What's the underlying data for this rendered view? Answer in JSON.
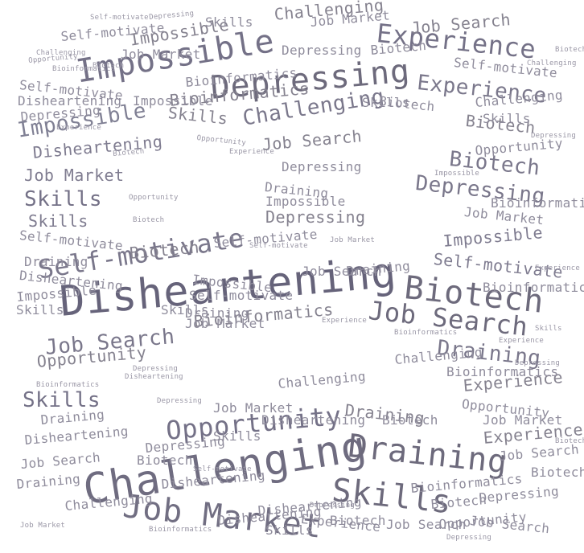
{
  "palette": {
    "word_color": "#6d6a7c",
    "light_word_color": "#8f8c9c",
    "background": "#ffffff"
  },
  "words": {
    "disheartening": "Disheartening",
    "challenging": "Challenging",
    "draining": "Draining",
    "impossible": "Impossible",
    "depressing": "Depressing",
    "biotech": "Biotech",
    "job_search": "Job Search",
    "job_market": "Job Market",
    "skills": "Skills",
    "self_motivate": "Self-motivate",
    "experience": "Experience",
    "opportunity": "Opportunity",
    "bioinformatics": "Bioinformatics"
  }
}
